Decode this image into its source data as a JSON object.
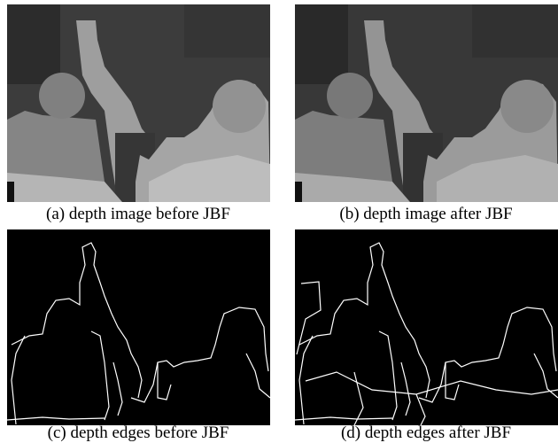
{
  "figure": {
    "captions": [
      "(a) depth image before JBF",
      "(b) depth image after JBF",
      "(c) depth edges before JBF",
      "(d) depth edges after JBF"
    ]
  }
}
